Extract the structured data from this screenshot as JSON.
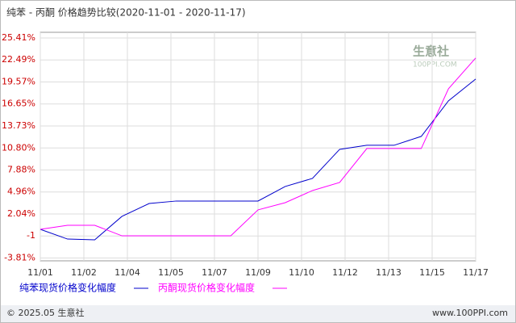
{
  "chart_data": {
    "type": "line",
    "title": "纯苯 - 丙酮 价格趋势比较(2020-11-01 - 2020-11-17)",
    "xticks": [
      "11/01",
      "11/02",
      "11/04",
      "11/05",
      "11/07",
      "11/09",
      "11/10",
      "11/12",
      "11/13",
      "11/15",
      "11/17"
    ],
    "series": [
      {
        "name": "纯苯现货价格变化幅度",
        "color": "#0000cc",
        "values": [
          0,
          -1.29,
          -1.39,
          1.72,
          3.43,
          3.76,
          3.76,
          3.76,
          3.76,
          5.69,
          6.76,
          10.62,
          11.16,
          11.16,
          12.34,
          17.06,
          19.96
        ]
      },
      {
        "name": "丙酮现货价格变化幅度",
        "color": "#ff00ff",
        "values": [
          0,
          0.54,
          0.54,
          -0.86,
          -0.86,
          -0.86,
          -0.86,
          -0.86,
          2.58,
          3.54,
          5.15,
          6.22,
          10.73,
          10.73,
          10.73,
          18.67,
          22.75
        ]
      }
    ],
    "ylim": [
      -4.18,
      26.16
    ],
    "yticks": [
      {
        "value": 25.41,
        "label": "25.41%"
      },
      {
        "value": 22.49,
        "label": "22.49%"
      },
      {
        "value": 19.57,
        "label": "19.57%"
      },
      {
        "value": 16.65,
        "label": "16.65%"
      },
      {
        "value": 13.73,
        "label": "13.73%"
      },
      {
        "value": 10.8,
        "label": "10.80%"
      },
      {
        "value": 7.88,
        "label": "7.88%"
      },
      {
        "value": 4.96,
        "label": "4.96%"
      },
      {
        "value": 2.04,
        "label": "2.04%"
      },
      {
        "value": -0.88,
        "label": "-1"
      },
      {
        "value": -3.81,
        "label": "-3.81%"
      }
    ],
    "grid": true,
    "watermark": {
      "name": "生意社",
      "site": "100PPI.COM"
    },
    "footer": {
      "copyright": "© 2025.05 生意社",
      "url": "www.100PPI.com"
    }
  }
}
